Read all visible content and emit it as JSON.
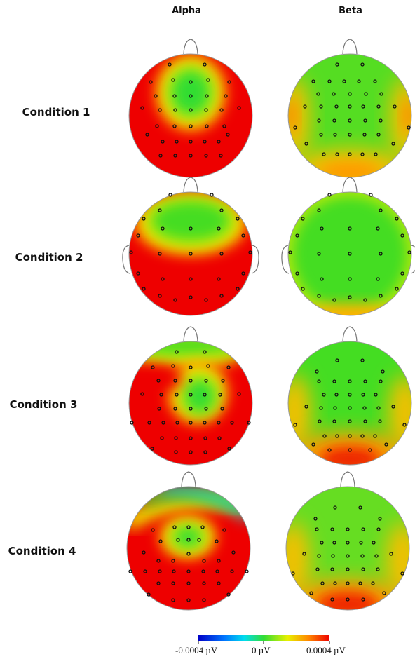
{
  "columns": [
    "Alpha",
    "Beta"
  ],
  "rows": [
    "Condition 1",
    "Condition 2",
    "Condition 3",
    "Condition 4"
  ],
  "colorbar": {
    "min_label": "-0.0004 µV",
    "mid_label": "0 µV",
    "max_label": "0.0004 µV",
    "min": -0.0004,
    "max": 0.0004,
    "colors": [
      "#0000c8",
      "#00c8ff",
      "#33dd33",
      "#f0f000",
      "#ff8800",
      "#ee0000"
    ]
  },
  "chart_data": {
    "type": "heatmap",
    "description_units": "µV",
    "panels": [
      {
        "row": "Condition 1",
        "column": "Alpha",
        "background": "positive",
        "minima": [
          "central-parietal"
        ]
      },
      {
        "row": "Condition 1",
        "column": "Beta",
        "background": "near-zero",
        "maxima": [
          "left-temporal",
          "right-temporal",
          "occipital"
        ]
      },
      {
        "row": "Condition 2",
        "column": "Alpha",
        "background": "positive",
        "minima": [
          "frontal"
        ]
      },
      {
        "row": "Condition 2",
        "column": "Beta",
        "background": "near-zero",
        "maxima": [
          "occipital-rim"
        ]
      },
      {
        "row": "Condition 3",
        "column": "Alpha",
        "background": "positive",
        "minima": [
          "frontal",
          "central"
        ]
      },
      {
        "row": "Condition 3",
        "column": "Beta",
        "background": "near-zero",
        "maxima": [
          "left-temporal",
          "right-temporal",
          "occipital"
        ]
      },
      {
        "row": "Condition 4",
        "column": "Alpha",
        "background": "positive",
        "minima": [
          "frontal-rim",
          "central"
        ]
      },
      {
        "row": "Condition 4",
        "column": "Beta",
        "background": "near-zero",
        "maxima": [
          "left-temporal",
          "right-temporal",
          "occipital"
        ]
      }
    ]
  }
}
